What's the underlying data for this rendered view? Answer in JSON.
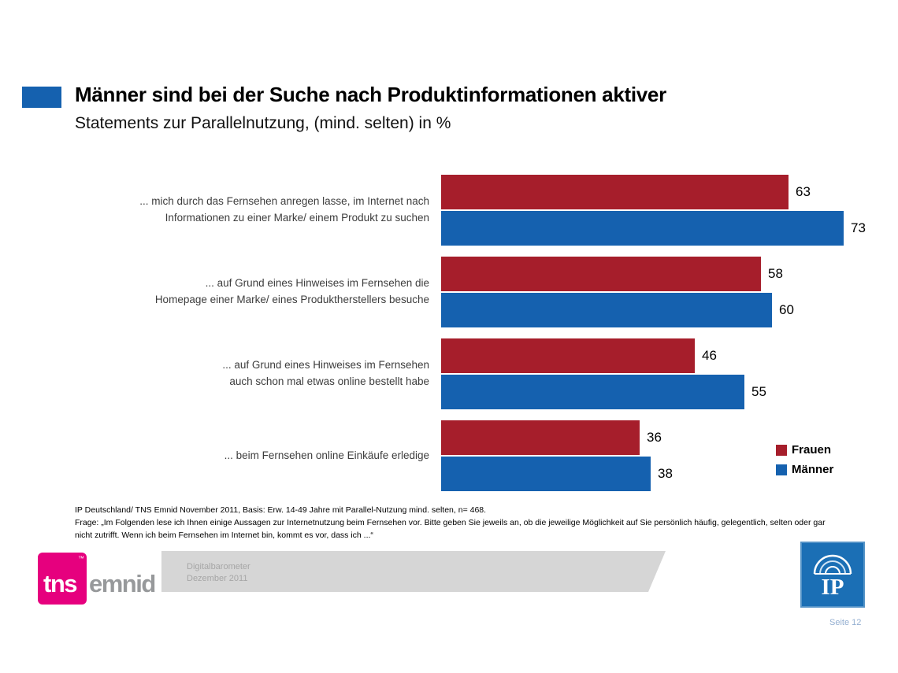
{
  "slide": {
    "title": "Männer sind bei der Suche nach Produktinformationen aktiver",
    "subtitle": "Statements zur Parallelnutzung, (mind. selten) in %"
  },
  "chart_data": {
    "type": "bar",
    "orientation": "horizontal",
    "title": "Männer sind bei der Suche nach Produktinformationen aktiver",
    "subtitle": "Statements zur Parallelnutzung, (mind. selten) in %",
    "categories": [
      "... mich durch das Fernsehen anregen lasse, im Internet nach\nInformationen zu einer Marke/ einem Produkt zu suchen",
      "... auf Grund eines Hinweises im Fernsehen die\nHomepage einer Marke/ eines Produktherstellers besuche",
      "... auf Grund eines Hinweises im Fernsehen\nauch schon mal etwas online bestellt habe",
      "... beim Fernsehen online Einkäufe erledige"
    ],
    "series": [
      {
        "name": "Frauen",
        "color": "#A61E2B",
        "values": [
          63,
          58,
          46,
          36
        ]
      },
      {
        "name": "Männer",
        "color": "#1561AF",
        "values": [
          73,
          60,
          55,
          38
        ]
      }
    ],
    "xlim": [
      0,
      80
    ],
    "xlabel": "",
    "ylabel": "",
    "grid": false,
    "value_labels": true,
    "legend_position": "right"
  },
  "footnote": {
    "line1": "IP Deutschland/ TNS Emnid November 2011, Basis: Erw. 14-49 Jahre mit Parallel-Nutzung mind. selten, n= 468.",
    "line2": "Frage: „Im Folgenden lese ich Ihnen einige Aussagen zur Internetnutzung beim Fernsehen vor. Bitte geben Sie jeweils an, ob die jeweilige Möglichkeit  auf Sie persönlich häufig, gelegentlich, selten oder gar nicht zutrifft. Wenn ich beim Fernsehen im Internet bin, kommt es vor, dass ich ...“"
  },
  "footer": {
    "tns": "tns",
    "tns_tm": "™",
    "emnid": "emnid",
    "banner_line1": "Digitalbarometer",
    "banner_line2": "Dezember  2011",
    "ip": "IP",
    "page": "Seite 12"
  },
  "colors": {
    "accent": "#1561AF",
    "frauen_red": "#A61E2B",
    "maenner_blue": "#1561AF",
    "tns_pink": "#E6007E",
    "banner_gray": "#D6D6D6",
    "ip_blue": "#1B6FB5"
  }
}
